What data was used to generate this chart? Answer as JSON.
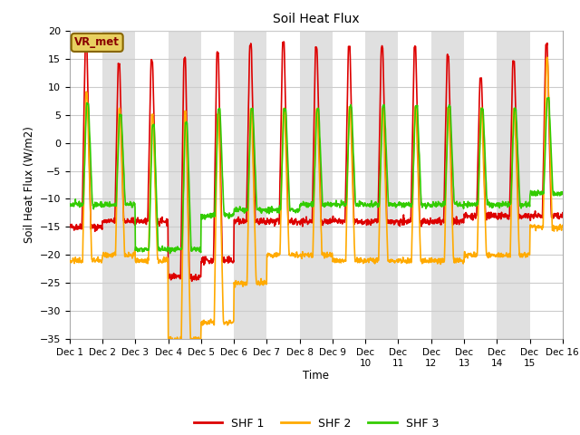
{
  "title": "Soil Heat Flux",
  "xlabel": "Time",
  "ylabel": "Soil Heat Flux (W/m2)",
  "ylim": [
    -35,
    20
  ],
  "xlim": [
    0,
    15
  ],
  "x_tick_labels": [
    "Dec 1",
    "Dec 2",
    "Dec 3",
    "Dec 4",
    "Dec 5",
    "Dec 6",
    "Dec 7",
    "Dec 8",
    "Dec 9",
    "Dec 9",
    "Dec 10",
    "Dec 11",
    "Dec 12",
    "Dec 13",
    "Dec 14",
    "Dec 15",
    "Dec 16"
  ],
  "colors": {
    "SHF1": "#dd0000",
    "SHF2": "#ffaa00",
    "SHF3": "#33cc00"
  },
  "legend_labels": [
    "SHF 1",
    "SHF 2",
    "SHF 3"
  ],
  "annotation_text": "VR_met",
  "stripe_light": "#ffffff",
  "stripe_dark": "#e0e0e0",
  "grid_color": "#cccccc",
  "linewidth": 1.2,
  "n_days": 15,
  "pts_per_day": 96,
  "shf1_peaks": [
    18,
    14,
    14.5,
    15,
    16,
    17.5,
    18,
    17,
    17,
    17,
    17,
    15.5,
    11.5,
    14.5,
    17.5
  ],
  "shf2_peaks": [
    9,
    6,
    5,
    5.5,
    5,
    6,
    6,
    6,
    6.5,
    6,
    6.5,
    6,
    6,
    6,
    15
  ],
  "shf3_peaks": [
    7,
    5,
    3,
    3.5,
    6,
    6,
    6,
    6,
    6.5,
    6.5,
    6.5,
    6.5,
    6,
    6,
    8
  ],
  "shf1_nights": [
    -15,
    -14,
    -14,
    -24,
    -21,
    -14,
    -14,
    -14,
    -14,
    -14,
    -14,
    -14,
    -13,
    -13,
    -13
  ],
  "shf2_nights": [
    -21,
    -20,
    -21,
    -35,
    -32,
    -25,
    -20,
    -20,
    -21,
    -21,
    -21,
    -21,
    -20,
    -20,
    -15
  ],
  "shf3_nights": [
    -11,
    -11,
    -19,
    -19,
    -13,
    -12,
    -12,
    -11,
    -11,
    -11,
    -11,
    -11,
    -11,
    -11,
    -9
  ]
}
